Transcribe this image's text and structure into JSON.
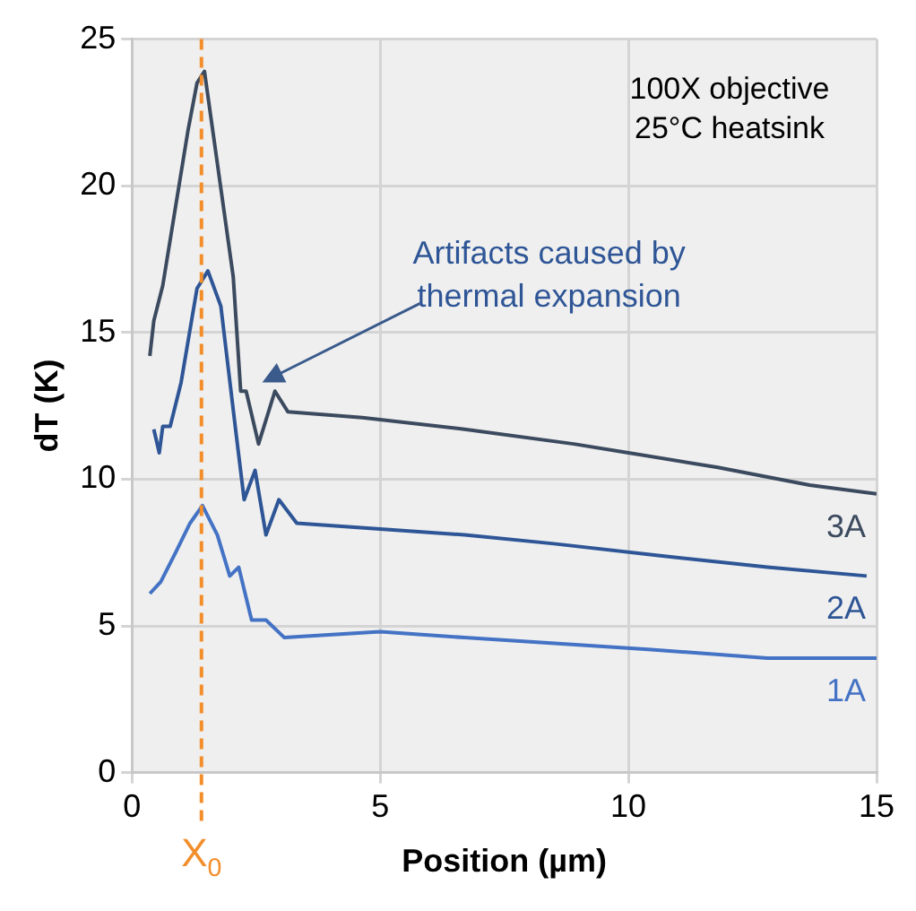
{
  "chart_data": {
    "type": "line",
    "xlabel": "Position (µm)",
    "ylabel": "dT (K)",
    "xlim": [
      0,
      15
    ],
    "xticks": [
      0,
      5,
      10,
      15
    ],
    "ylim": [
      0,
      25
    ],
    "yticks": [
      0,
      5,
      10,
      15,
      20,
      25
    ],
    "grid": true,
    "legend": false,
    "marker": "none",
    "line_style": "solid",
    "series": [
      {
        "name": "3A",
        "color": "#3b4a5e",
        "x": [
          0.36,
          0.44,
          0.62,
          1.13,
          1.31,
          1.46,
          2.04,
          2.19,
          2.3,
          2.55,
          2.88,
          3.14,
          4.64,
          6.7,
          8.9,
          10,
          11.8,
          13.65,
          15
        ],
        "values": [
          14.2,
          15.4,
          16.6,
          21.9,
          23.5,
          23.9,
          16.9,
          13.0,
          13.0,
          11.2,
          13.0,
          12.3,
          12.1,
          11.7,
          11.2,
          10.9,
          10.4,
          9.8,
          9.5
        ]
      },
      {
        "name": "2A",
        "color": "#2e5596",
        "x": [
          0.44,
          0.55,
          0.62,
          0.77,
          0.99,
          1.31,
          1.53,
          1.79,
          2.08,
          2.26,
          2.48,
          2.7,
          2.96,
          3.32,
          5.0,
          6.7,
          8.5,
          10.6,
          12.8,
          14.8
        ],
        "values": [
          11.7,
          10.9,
          11.8,
          11.8,
          13.3,
          16.5,
          17.1,
          15.9,
          11.8,
          9.3,
          10.3,
          8.1,
          9.3,
          8.5,
          8.3,
          8.1,
          7.8,
          7.4,
          7.0,
          6.7
        ]
      },
      {
        "name": "1A",
        "color": "#4472c4",
        "x": [
          0.36,
          0.58,
          0.88,
          1.17,
          1.42,
          1.72,
          1.97,
          2.15,
          2.41,
          2.7,
          3.07,
          5.0,
          6.7,
          10.4,
          12.8,
          15
        ],
        "values": [
          6.1,
          6.5,
          7.5,
          8.5,
          9.1,
          8.1,
          6.7,
          7.0,
          5.2,
          5.2,
          4.6,
          4.8,
          4.6,
          4.2,
          3.9,
          3.9
        ]
      }
    ],
    "ref_lines": [
      {
        "axis": "x",
        "value": 1.4,
        "label": "X$_{0}$",
        "color": "#f28e2b",
        "line_style": "dashed"
      }
    ],
    "annotations": [
      "Artifacts caused by\nthermal expansion",
      "100X objective\n25°C heatsink"
    ]
  }
}
